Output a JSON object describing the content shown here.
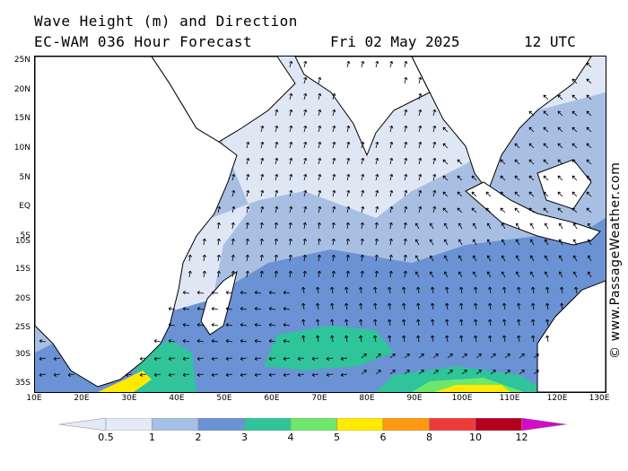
{
  "title": {
    "line1": "Wave Height (m) and Direction",
    "line2_left": "EC-WAM 036 Hour Forecast",
    "line2_date": "Fri 02 May 2025",
    "line2_time": "12 UTC"
  },
  "credit": "© www.PassageWeather.com",
  "latitude_labels": [
    "25N",
    "20N",
    "15N",
    "10N",
    "5N",
    "EQ",
    "5S",
    "10S",
    "15S",
    "20S",
    "25S",
    "30S",
    "35S"
  ],
  "longitude_labels": [
    "10E",
    "20E",
    "30E",
    "40E",
    "50E",
    "60E",
    "70E",
    "80E",
    "90E",
    "100E",
    "110E",
    "120E",
    "130E"
  ],
  "legend": {
    "ticks": [
      "0.5",
      "1",
      "2",
      "3",
      "4",
      "5",
      "6",
      "8",
      "10",
      "12"
    ],
    "colors": [
      "#e4eaf5",
      "#a7bfe3",
      "#6a92d4",
      "#2fc49a",
      "#6de86a",
      "#ffea00",
      "#ff9a10",
      "#ef3a3a",
      "#b4001e",
      "#d50ac8"
    ]
  },
  "map": {
    "land_color": "#ffffff",
    "ocean_colors": {
      "calm": "#dfe7f5",
      "low": "#a8bfe3",
      "moderate": "#6a92d4",
      "high": "#2fc49a",
      "very_high": "#6de86a",
      "extreme": "#ffea00"
    }
  }
}
